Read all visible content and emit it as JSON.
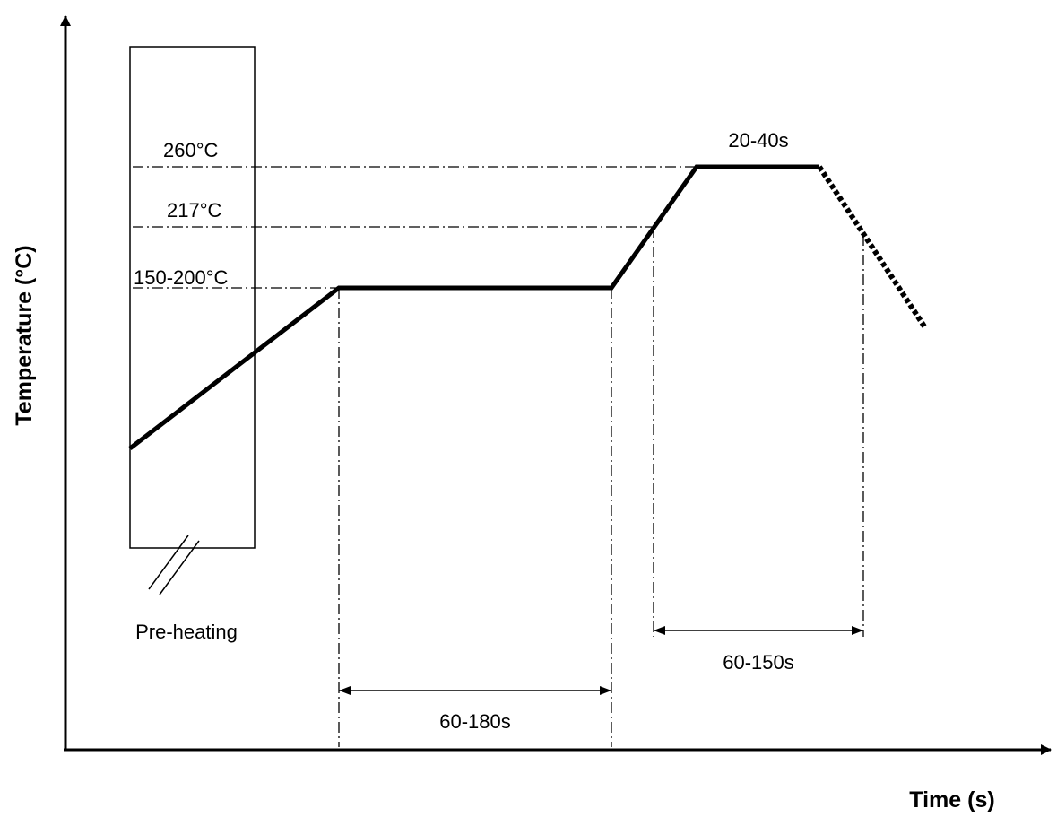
{
  "axes": {
    "x_title": "Time (s)",
    "y_title": "Temperature (°C)"
  },
  "temperature_labels": {
    "peak": "260°C",
    "liquidus": "217°C",
    "soak": "150-200°C"
  },
  "zones": {
    "preheat_label": "Pre-heating",
    "peak_hold": "20-40s",
    "soak_duration": "60-180s",
    "above_liquidus_duration": "60-150s"
  }
}
